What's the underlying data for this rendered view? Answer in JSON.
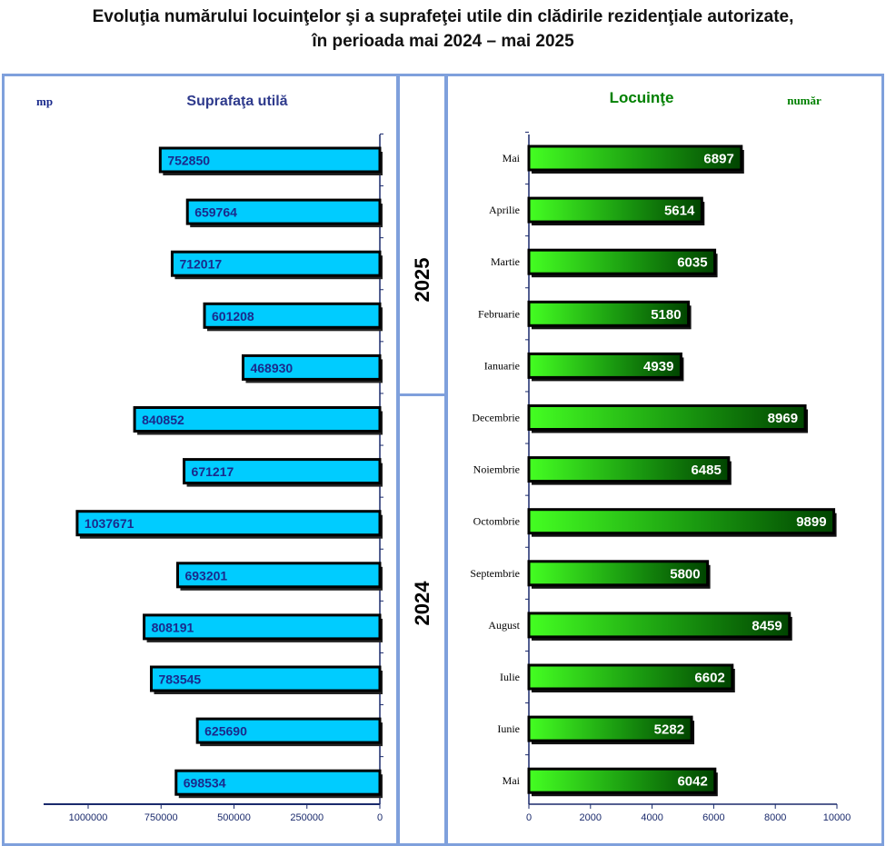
{
  "title": {
    "line1": "Evoluţia numărului locuinţelor şi a suprafeţei utile din clădirile rezidenţiale autorizate,",
    "line2": "în perioada mai 2024 – mai 2025"
  },
  "years": {
    "upper": "2025",
    "lower": "2024"
  },
  "colors": {
    "area_bar": "#00ccff",
    "area_label": "#1a2a8c",
    "count_bar_light": "#44ff22",
    "count_bar_dark": "#005500",
    "frame": "#7fa0dc",
    "area_title": "#2e3a8c",
    "count_title": "#008000"
  },
  "chart_data": [
    {
      "type": "bar",
      "orientation": "horizontal",
      "title": "Suprafaţa utilă",
      "unit_label": "mp",
      "categories": [
        "Mai 2025",
        "Aprilie 2025",
        "Martie 2025",
        "Februarie 2025",
        "Ianuarie 2025",
        "Decembrie 2024",
        "Noiembrie 2024",
        "Octombrie 2024",
        "Septembrie 2024",
        "August 2024",
        "Iulie 2024",
        "Iunie 2024",
        "Mai 2024"
      ],
      "values": [
        752850,
        659764,
        712017,
        601208,
        468930,
        840852,
        671217,
        1037671,
        693201,
        808191,
        783545,
        625690,
        698534
      ],
      "xlim": [
        1150000,
        0
      ],
      "ticks": [
        1000000,
        750000,
        500000,
        250000,
        0
      ],
      "tick_labels": [
        "1000000",
        "750000",
        "500000",
        "250000",
        "0"
      ]
    },
    {
      "type": "bar",
      "orientation": "horizontal",
      "title": "Locuinţe",
      "unit_label": "număr",
      "categories": [
        "Mai",
        "Aprilie",
        "Martie",
        "Februarie",
        "Ianuarie",
        "Decembrie",
        "Noiembrie",
        "Octombrie",
        "Septembrie",
        "August",
        "Iulie",
        "Iunie",
        "Mai"
      ],
      "values": [
        6897,
        5614,
        6035,
        5180,
        4939,
        8969,
        6485,
        9899,
        5800,
        8459,
        6602,
        5282,
        6042
      ],
      "xlim": [
        0,
        10000
      ],
      "ticks": [
        0,
        2000,
        4000,
        6000,
        8000,
        10000
      ],
      "tick_labels": [
        "0",
        "2000",
        "4000",
        "6000",
        "8000",
        "10000"
      ]
    }
  ]
}
